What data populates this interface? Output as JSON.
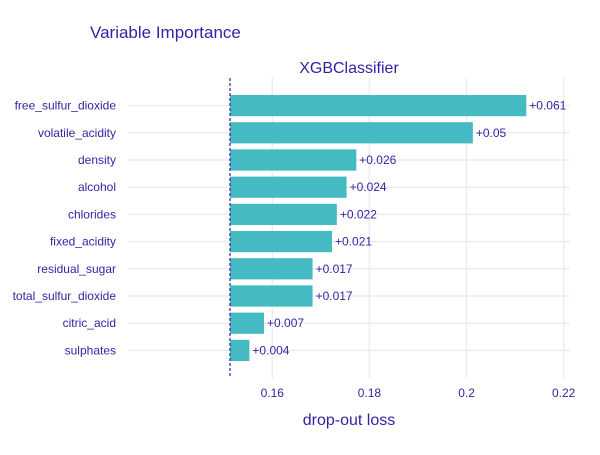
{
  "chart_data": {
    "type": "bar",
    "orientation": "horizontal",
    "title": "Variable Importance",
    "subtitle": "XGBClassifier",
    "xlabel": "drop-out loss",
    "ylabel": "",
    "baseline": 0.1513,
    "xlim": [
      0.1303,
      0.2213
    ],
    "xticks": [
      0.16,
      0.18,
      0.2,
      0.22
    ],
    "xtick_labels": [
      "0.16",
      "0.18",
      "0.2",
      "0.22"
    ],
    "grid": true,
    "categories": [
      "free_sulfur_dioxide",
      "volatile_acidity",
      "density",
      "alcohol",
      "chlorides",
      "fixed_acidity",
      "residual_sugar",
      "total_sulfur_dioxide",
      "citric_acid",
      "sulphates"
    ],
    "values": [
      0.2123,
      0.2013,
      0.1773,
      0.1753,
      0.1733,
      0.1723,
      0.1683,
      0.1683,
      0.1583,
      0.1553
    ],
    "labels": [
      "+0.061",
      "+0.05",
      "+0.026",
      "+0.024",
      "+0.022",
      "+0.021",
      "+0.017",
      "+0.017",
      "+0.007",
      "+0.004"
    ],
    "colors": {
      "bar": "#46bac2",
      "text": "#371ea3",
      "grid": "#ececf0",
      "baseline": "#371ea3"
    }
  }
}
